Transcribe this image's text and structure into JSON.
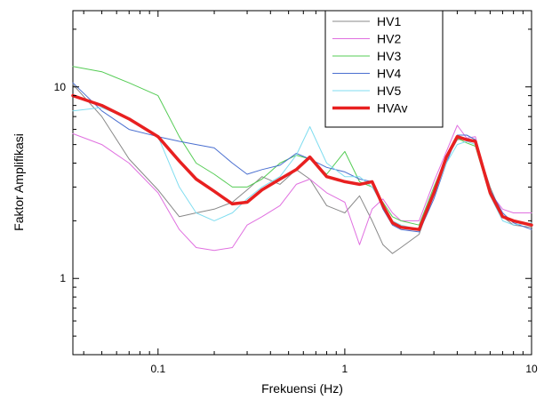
{
  "chart_data": {
    "type": "line",
    "xlabel": "Frekuensi (Hz)",
    "ylabel": "Faktor Amplifikasi",
    "xscale": "log",
    "yscale": "log",
    "xlim": [
      0.035,
      10
    ],
    "ylim": [
      0.4,
      25
    ],
    "xticks": [
      {
        "value": 0.1,
        "label": "0.1"
      },
      {
        "value": 1,
        "label": "1"
      },
      {
        "value": 10,
        "label": "10"
      }
    ],
    "yticks": [
      {
        "value": 1,
        "label": "1"
      },
      {
        "value": 10,
        "label": "10"
      }
    ],
    "legend_position": "top-right",
    "series": [
      {
        "name": "HV1",
        "color": "#888888",
        "width": 1,
        "x": [
          0.035,
          0.05,
          0.07,
          0.1,
          0.13,
          0.16,
          0.2,
          0.25,
          0.3,
          0.36,
          0.45,
          0.55,
          0.65,
          0.8,
          1.0,
          1.2,
          1.4,
          1.6,
          1.8,
          2.0,
          2.5,
          3.0,
          3.5,
          4.0,
          4.5,
          5.0,
          6.0,
          7.0,
          8.0,
          10.0
        ],
        "y": [
          10.3,
          7.0,
          4.2,
          2.9,
          2.1,
          2.2,
          2.3,
          2.5,
          2.9,
          3.4,
          3.1,
          3.7,
          3.3,
          2.4,
          2.2,
          2.7,
          2.0,
          1.5,
          1.35,
          1.45,
          1.7,
          2.8,
          4.2,
          5.3,
          5.4,
          5.2,
          3.0,
          2.1,
          1.9,
          1.85
        ]
      },
      {
        "name": "HV2",
        "color": "#e070e0",
        "width": 1,
        "x": [
          0.035,
          0.05,
          0.07,
          0.1,
          0.13,
          0.16,
          0.2,
          0.25,
          0.3,
          0.36,
          0.45,
          0.55,
          0.65,
          0.8,
          1.0,
          1.2,
          1.4,
          1.6,
          1.8,
          2.0,
          2.5,
          3.0,
          3.5,
          4.0,
          4.5,
          5.0,
          6.0,
          7.0,
          8.0,
          10.0
        ],
        "y": [
          5.7,
          5.0,
          4.0,
          2.8,
          1.8,
          1.45,
          1.4,
          1.45,
          1.9,
          2.1,
          2.4,
          3.1,
          3.3,
          2.8,
          2.5,
          1.5,
          2.3,
          2.6,
          2.2,
          2.0,
          2.0,
          3.2,
          4.6,
          6.3,
          5.4,
          5.5,
          2.8,
          2.3,
          2.2,
          2.2
        ]
      },
      {
        "name": "HV3",
        "color": "#55cc55",
        "width": 1,
        "x": [
          0.035,
          0.05,
          0.07,
          0.1,
          0.13,
          0.16,
          0.2,
          0.25,
          0.3,
          0.36,
          0.45,
          0.55,
          0.65,
          0.8,
          1.0,
          1.2,
          1.4,
          1.6,
          1.8,
          2.0,
          2.5,
          3.0,
          3.5,
          4.0,
          4.5,
          5.0,
          6.0,
          7.0,
          8.0,
          10.0
        ],
        "y": [
          12.8,
          12.0,
          10.5,
          9.0,
          5.5,
          4.0,
          3.5,
          3.0,
          3.0,
          3.3,
          4.0,
          4.4,
          4.2,
          3.5,
          4.6,
          3.2,
          3.0,
          2.5,
          2.1,
          2.0,
          1.9,
          3.0,
          4.3,
          5.4,
          5.1,
          4.9,
          2.7,
          2.1,
          2.0,
          1.9
        ]
      },
      {
        "name": "HV4",
        "color": "#4a6fd0",
        "width": 1,
        "x": [
          0.035,
          0.05,
          0.07,
          0.1,
          0.13,
          0.16,
          0.2,
          0.25,
          0.3,
          0.36,
          0.45,
          0.55,
          0.65,
          0.8,
          1.0,
          1.2,
          1.4,
          1.6,
          1.8,
          2.0,
          2.5,
          3.0,
          3.5,
          4.0,
          4.5,
          5.0,
          6.0,
          7.0,
          8.0,
          10.0
        ],
        "y": [
          10.5,
          7.5,
          6.0,
          5.5,
          5.2,
          5.0,
          4.8,
          4.0,
          3.5,
          3.7,
          3.9,
          4.5,
          4.2,
          3.8,
          3.6,
          3.3,
          3.2,
          2.3,
          1.9,
          1.8,
          1.75,
          2.6,
          4.0,
          5.6,
          5.6,
          5.3,
          2.9,
          2.2,
          1.95,
          1.8
        ]
      },
      {
        "name": "HV5",
        "color": "#80ddf0",
        "width": 1,
        "x": [
          0.035,
          0.05,
          0.07,
          0.1,
          0.13,
          0.16,
          0.2,
          0.25,
          0.3,
          0.36,
          0.45,
          0.55,
          0.65,
          0.8,
          1.0,
          1.2,
          1.4,
          1.6,
          1.8,
          2.0,
          2.5,
          3.0,
          3.5,
          4.0,
          4.5,
          5.0,
          6.0,
          7.0,
          8.0,
          10.0
        ],
        "y": [
          7.5,
          7.8,
          6.8,
          5.5,
          3.0,
          2.2,
          2.0,
          2.2,
          2.6,
          3.0,
          3.4,
          4.4,
          6.2,
          4.0,
          3.4,
          3.4,
          3.0,
          2.4,
          2.0,
          1.9,
          1.8,
          2.7,
          4.0,
          5.0,
          5.2,
          5.0,
          2.7,
          2.0,
          1.9,
          1.95
        ]
      },
      {
        "name": "HVAv",
        "color": "#e82020",
        "width": 3.5,
        "x": [
          0.035,
          0.05,
          0.07,
          0.1,
          0.13,
          0.16,
          0.2,
          0.25,
          0.3,
          0.36,
          0.45,
          0.55,
          0.65,
          0.8,
          1.0,
          1.2,
          1.4,
          1.6,
          1.8,
          2.0,
          2.5,
          3.0,
          3.5,
          4.0,
          4.5,
          5.0,
          6.0,
          7.0,
          8.0,
          10.0
        ],
        "y": [
          9.0,
          8.0,
          6.8,
          5.5,
          4.1,
          3.3,
          2.85,
          2.45,
          2.5,
          2.9,
          3.3,
          3.7,
          4.3,
          3.4,
          3.2,
          3.1,
          3.2,
          2.4,
          1.95,
          1.85,
          1.8,
          2.8,
          4.3,
          5.5,
          5.3,
          5.2,
          2.8,
          2.1,
          2.0,
          1.9
        ]
      }
    ]
  }
}
